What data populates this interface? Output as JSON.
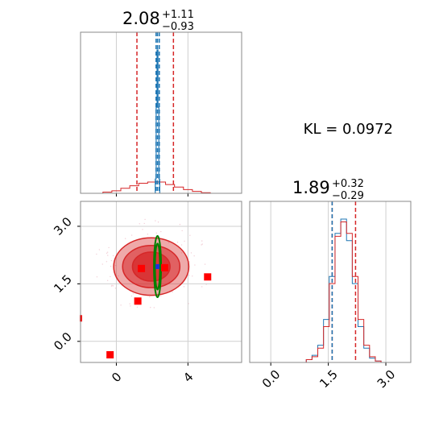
{
  "chart_data": {
    "type": "corner",
    "kl_text": "KL = 0.0972",
    "params": [
      {
        "median": "2.08",
        "plus": "+1.11",
        "minus": "−0.93"
      },
      {
        "median": "1.89",
        "plus": "+0.32",
        "minus": "−0.29"
      }
    ],
    "top_left": {
      "xlim": [
        -2.0,
        7.0
      ],
      "blue_median": 2.3,
      "blue_quantiles": [
        2.22,
        2.4
      ],
      "red_quantiles": [
        1.15,
        3.19
      ],
      "xticks": [
        0,
        4
      ],
      "blue_hist": {
        "x": [
          2.2,
          2.25,
          2.3,
          2.35,
          2.4
        ],
        "y": [
          0.1,
          0.6,
          1.0,
          0.6,
          0.1
        ]
      },
      "red_hist": {
        "x": [
          -0.5,
          0.0,
          0.5,
          1.0,
          1.5,
          2.0,
          2.5,
          3.0,
          3.5,
          4.0,
          4.5,
          5.0
        ],
        "y": [
          0.01,
          0.02,
          0.04,
          0.06,
          0.08,
          0.09,
          0.09,
          0.07,
          0.05,
          0.03,
          0.015,
          0.005
        ]
      }
    },
    "bottom_left": {
      "xlim": [
        -2.0,
        7.0
      ],
      "ylim": [
        -0.55,
        3.65
      ],
      "xticks": [
        0,
        4
      ],
      "yticks": [
        0.0,
        1.5,
        3.0
      ],
      "ytick_labels": [
        "0.0",
        "1.5",
        "3.0"
      ],
      "xtick_labels": [
        "0",
        "4"
      ],
      "red_contours": [
        {
          "cx": 1.95,
          "cy": 1.95,
          "rx": 2.1,
          "ry": 0.75,
          "opacity": 0.4
        },
        {
          "cx": 1.95,
          "cy": 1.95,
          "rx": 1.6,
          "ry": 0.55,
          "opacity": 0.55
        },
        {
          "cx": 1.95,
          "cy": 1.95,
          "rx": 1.05,
          "ry": 0.38,
          "opacity": 0.75
        }
      ],
      "green_contours": [
        {
          "cx": 2.3,
          "cy": 1.95,
          "rx": 0.2,
          "ry": 0.8
        },
        {
          "cx": 2.3,
          "cy": 1.95,
          "rx": 0.14,
          "ry": 0.6
        }
      ],
      "blue_point": {
        "x": 2.3,
        "y": 1.95
      },
      "red_squares": [
        {
          "x": 1.4,
          "y": 1.9
        },
        {
          "x": 2.7,
          "y": 1.92
        },
        {
          "x": 1.2,
          "y": 1.05
        },
        {
          "x": 5.1,
          "y": 1.68
        },
        {
          "x": -0.35,
          "y": -0.35
        }
      ]
    },
    "bottom_right": {
      "xlim": [
        -0.55,
        3.65
      ],
      "xticks": [
        0.0,
        1.5,
        3.0
      ],
      "xtick_labels": [
        "0.0",
        "1.5",
        "3.0"
      ],
      "blue_median": 1.6,
      "red_quantiles": [
        1.6,
        2.21
      ],
      "blue_hist": {
        "x": [
          1.0,
          1.15,
          1.3,
          1.45,
          1.6,
          1.75,
          1.9,
          2.05,
          2.2,
          2.35,
          2.5,
          2.65,
          2.8
        ],
        "y": [
          0.02,
          0.05,
          0.12,
          0.3,
          0.6,
          0.9,
          1.0,
          0.85,
          0.55,
          0.25,
          0.1,
          0.03,
          0.01
        ]
      },
      "red_hist": {
        "x": [
          1.0,
          1.15,
          1.3,
          1.45,
          1.6,
          1.75,
          1.9,
          2.05,
          2.2,
          2.35,
          2.5,
          2.65,
          2.8
        ],
        "y": [
          0.02,
          0.04,
          0.1,
          0.25,
          0.55,
          0.88,
          0.98,
          0.9,
          0.6,
          0.3,
          0.12,
          0.04,
          0.01
        ]
      }
    }
  }
}
